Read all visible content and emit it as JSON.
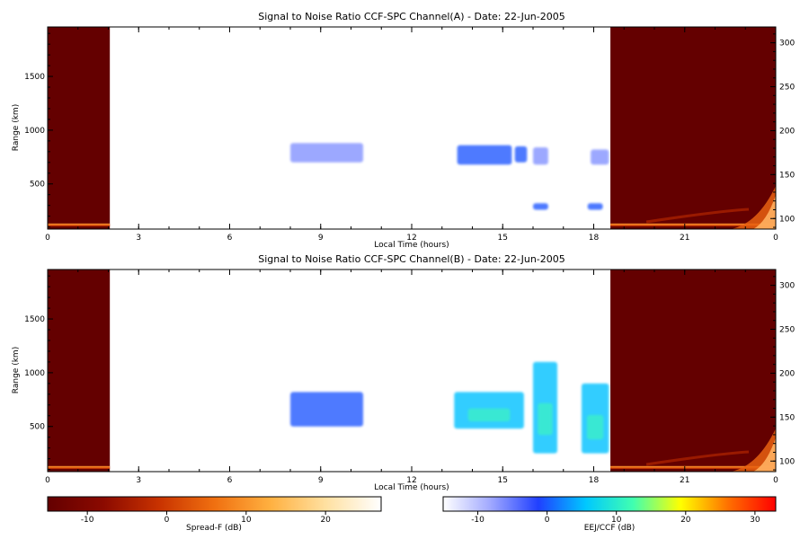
{
  "chart_data": [
    {
      "type": "heatmap",
      "title": "Signal to Noise Ratio CCF-SPC Channel(A) - Date: 22-Jun-2005",
      "xlabel": "Local Time (hours)",
      "ylabel": "Range (km)",
      "xlim": [
        0,
        24
      ],
      "ylim": [
        80,
        1960
      ],
      "y2lim": [
        88,
        318
      ],
      "x_ticks": [
        "0",
        "3",
        "6",
        "9",
        "12",
        "15",
        "18",
        "21",
        "0"
      ],
      "y_ticks": [
        "500",
        "1000",
        "1500"
      ],
      "y2_ticks": [
        "100",
        "150",
        "200",
        "250",
        "300"
      ],
      "spread_f_blocks": [
        {
          "t_start": 0.0,
          "t_end": 2.05,
          "base_ridge_km": 115
        },
        {
          "t_start": 18.55,
          "t_end": 24.0,
          "base_ridge_km": 115
        }
      ],
      "echo_regions": [
        {
          "t_start": 8.0,
          "t_end": 10.4,
          "r_min": 700,
          "r_max": 880,
          "level": "weak"
        },
        {
          "t_start": 13.5,
          "t_end": 15.3,
          "r_min": 680,
          "r_max": 860,
          "level": "moderate"
        },
        {
          "t_start": 15.4,
          "t_end": 15.8,
          "r_min": 700,
          "r_max": 850,
          "level": "moderate"
        },
        {
          "t_start": 16.0,
          "t_end": 16.5,
          "r_min": 680,
          "r_max": 840,
          "level": "weak"
        },
        {
          "t_start": 16.0,
          "t_end": 16.5,
          "r_min": 260,
          "r_max": 320,
          "level": "moderate"
        },
        {
          "t_start": 17.8,
          "t_end": 18.3,
          "r_min": 260,
          "r_max": 320,
          "level": "moderate"
        },
        {
          "t_start": 17.9,
          "t_end": 18.5,
          "r_min": 680,
          "r_max": 820,
          "level": "weak"
        }
      ]
    },
    {
      "type": "heatmap",
      "title": "Signal to Noise Ratio CCF-SPC Channel(B) - Date: 22-Jun-2005",
      "xlabel": "Local Time (hours)",
      "ylabel": "Range (km)",
      "xlim": [
        0,
        24
      ],
      "ylim": [
        80,
        1960
      ],
      "y2lim": [
        88,
        318
      ],
      "x_ticks": [
        "0",
        "3",
        "6",
        "9",
        "12",
        "15",
        "18",
        "21",
        "0"
      ],
      "y_ticks": [
        "500",
        "1000",
        "1500"
      ],
      "y2_ticks": [
        "100",
        "150",
        "200",
        "250",
        "300"
      ],
      "spread_f_blocks": [
        {
          "t_start": 0.0,
          "t_end": 2.05,
          "base_ridge_km": 115
        },
        {
          "t_start": 18.55,
          "t_end": 24.0,
          "base_ridge_km": 115
        }
      ],
      "echo_regions": [
        {
          "t_start": 8.0,
          "t_end": 10.4,
          "r_min": 500,
          "r_max": 820,
          "level": "moderate"
        },
        {
          "t_start": 13.4,
          "t_end": 15.7,
          "r_min": 480,
          "r_max": 820,
          "level": "strong"
        },
        {
          "t_start": 16.0,
          "t_end": 16.8,
          "r_min": 250,
          "r_max": 1100,
          "level": "strong"
        },
        {
          "t_start": 17.6,
          "t_end": 18.5,
          "r_min": 250,
          "r_max": 900,
          "level": "strong"
        }
      ]
    }
  ],
  "colorbars": [
    {
      "label": "Spread-F (dB)",
      "min": -15,
      "max": 27,
      "ticks": [
        "-10",
        "0",
        "10",
        "20"
      ],
      "stops": [
        "#640000",
        "#8b0a00",
        "#c83200",
        "#f07010",
        "#ffb040",
        "#ffe0a0",
        "#ffffff"
      ]
    },
    {
      "label": "EEJ/CCF (dB)",
      "min": -15,
      "max": 33,
      "ticks": [
        "-10",
        "0",
        "10",
        "20",
        "30"
      ],
      "stops": [
        "#ffffff",
        "#a0a8ff",
        "#2040ff",
        "#00c8ff",
        "#40ffb0",
        "#ffff00",
        "#ff7000",
        "#ff0000"
      ]
    }
  ]
}
